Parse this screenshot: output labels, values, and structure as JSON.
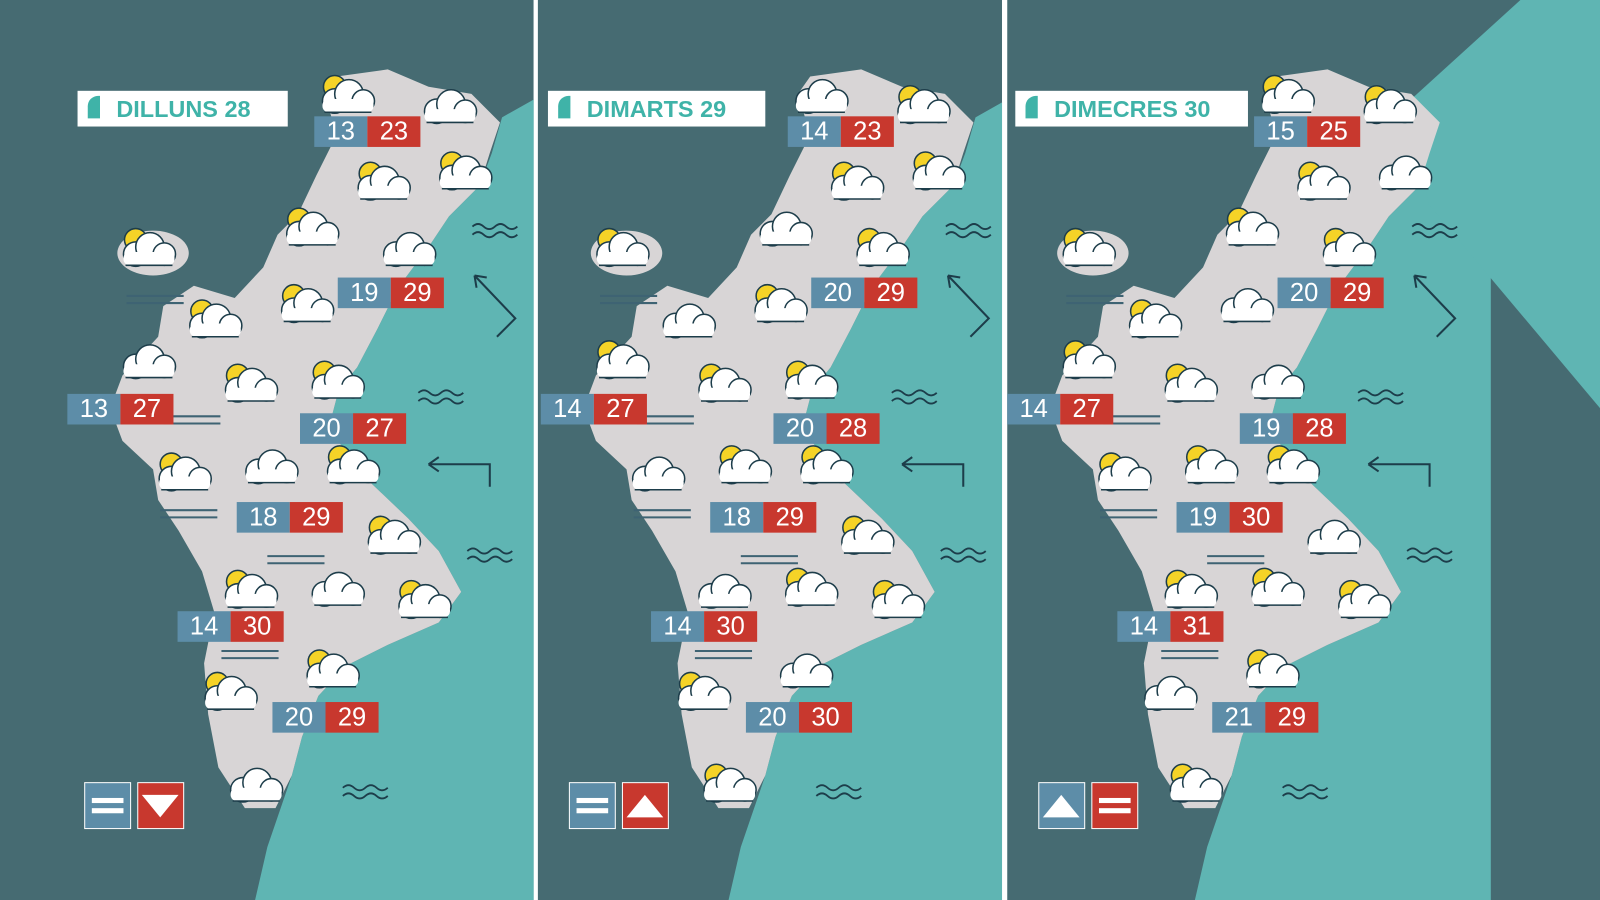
{
  "panels": [
    {
      "title": "DILLUNS 28",
      "temps": [
        {
          "min": 13,
          "max": 23
        },
        {
          "min": 19,
          "max": 29
        },
        {
          "min": 13,
          "max": 27
        },
        {
          "min": 20,
          "max": 27
        },
        {
          "min": 18,
          "max": 29
        },
        {
          "min": 14,
          "max": 30
        },
        {
          "min": 20,
          "max": 29
        }
      ]
    },
    {
      "title": "DIMARTS 29",
      "temps": [
        {
          "min": 14,
          "max": 23
        },
        {
          "min": 20,
          "max": 29
        },
        {
          "min": 14,
          "max": 27
        },
        {
          "min": 20,
          "max": 28
        },
        {
          "min": 18,
          "max": 29
        },
        {
          "min": 14,
          "max": 30
        },
        {
          "min": 20,
          "max": 30
        }
      ]
    },
    {
      "title": "DIMECRES 30",
      "temps": [
        {
          "min": 15,
          "max": 25
        },
        {
          "min": 20,
          "max": 29
        },
        {
          "min": 14,
          "max": 27
        },
        {
          "min": 19,
          "max": 28
        },
        {
          "min": 19,
          "max": 30
        },
        {
          "min": 14,
          "max": 31
        },
        {
          "min": 21,
          "max": 29
        }
      ]
    }
  ]
}
